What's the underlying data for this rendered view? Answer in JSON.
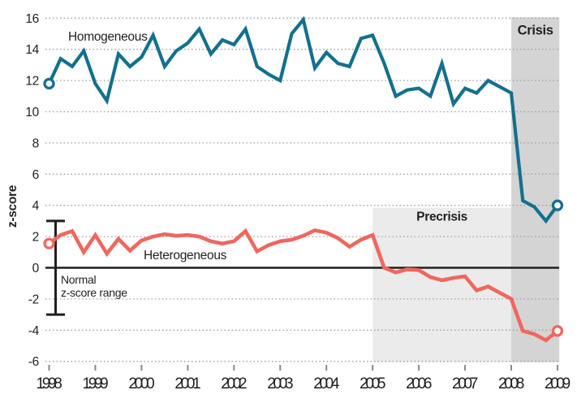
{
  "figure": {
    "background": "#ffffff",
    "text_color": "#231f20",
    "gridline_color": "#9d9d9d",
    "tick_color": "#8a8a8a",
    "zero_line_color": "#231f20"
  },
  "axes": {
    "y_label": "z-score",
    "y_ticks": [
      16,
      14,
      12,
      10,
      8,
      6,
      4,
      2,
      0,
      -2,
      -4,
      -6
    ],
    "x_ticks": [
      1998,
      1999,
      2000,
      2001,
      2002,
      2003,
      2004,
      2005,
      2006,
      2007,
      2008,
      2009
    ]
  },
  "annotations": {
    "normal_range_line1": "Normal",
    "normal_range_line2": "z-score range"
  },
  "chart_data": {
    "type": "line",
    "title": "",
    "xlabel": "",
    "ylabel": "z-score",
    "xlim": [
      1998,
      2009.05
    ],
    "ylim": [
      -6.05,
      16.05
    ],
    "grid": "horizontal dotted lines every 2 units; solid black line at 0",
    "legend_position": "inline labels on lines",
    "x": [
      1998.0,
      1998.25,
      1998.5,
      1998.75,
      1999.0,
      1999.25,
      1999.5,
      1999.75,
      2000.0,
      2000.25,
      2000.5,
      2000.75,
      2001.0,
      2001.25,
      2001.5,
      2001.75,
      2002.0,
      2002.25,
      2002.5,
      2002.75,
      2003.0,
      2003.25,
      2003.5,
      2003.75,
      2004.0,
      2004.25,
      2004.5,
      2004.75,
      2005.0,
      2005.25,
      2005.5,
      2005.75,
      2006.0,
      2006.25,
      2006.5,
      2006.75,
      2007.0,
      2007.25,
      2007.5,
      2007.75,
      2008.0,
      2008.25,
      2008.5,
      2008.75,
      2009.0
    ],
    "series": [
      {
        "name": "Homogeneous",
        "color": "#13708f",
        "line_width": 4.2,
        "values": [
          11.8,
          13.4,
          12.9,
          13.9,
          11.8,
          10.7,
          13.7,
          12.9,
          13.5,
          14.9,
          12.9,
          13.9,
          14.4,
          15.3,
          13.7,
          14.6,
          14.3,
          15.3,
          12.9,
          12.4,
          12.0,
          15.0,
          15.9,
          12.8,
          13.8,
          13.1,
          12.9,
          14.7,
          14.9,
          13.1,
          11.0,
          11.4,
          11.5,
          11.0,
          13.1,
          10.5,
          11.5,
          11.2,
          12.0,
          11.6,
          11.2,
          4.3,
          3.9,
          3.0,
          4.0
        ]
      },
      {
        "name": "Heterogeneous",
        "color": "#f0675e",
        "line_width": 4.6,
        "values": [
          1.55,
          2.1,
          2.35,
          1.0,
          2.1,
          0.9,
          1.85,
          1.1,
          1.75,
          2.0,
          2.15,
          2.05,
          2.1,
          2.0,
          1.7,
          1.55,
          1.7,
          2.35,
          1.05,
          1.45,
          1.7,
          1.8,
          2.05,
          2.4,
          2.25,
          1.9,
          1.35,
          1.8,
          2.1,
          0.0,
          -0.3,
          -0.1,
          -0.15,
          -0.6,
          -0.8,
          -0.65,
          -0.55,
          -1.45,
          -1.2,
          -1.6,
          -2.0,
          -4.05,
          -4.25,
          -4.65,
          -4.05
        ]
      }
    ],
    "endpoint_markers": "open white circles on first and last point of each series",
    "regions": [
      {
        "label": "Precrisis",
        "x_start": 2005.0,
        "x_end": 2008.0,
        "z_top": 3.85,
        "z_bottom": -6.05,
        "color": "#ebebeb"
      },
      {
        "label": "Crisis",
        "x_start": 2008.0,
        "x_end": 2009.04,
        "z_top": 16.05,
        "z_bottom": -6.05,
        "color": "#d4d4d4"
      }
    ],
    "error_bar": {
      "description": "normal z-score range marker at left edge",
      "z_high": 3,
      "z_low": -3
    }
  }
}
